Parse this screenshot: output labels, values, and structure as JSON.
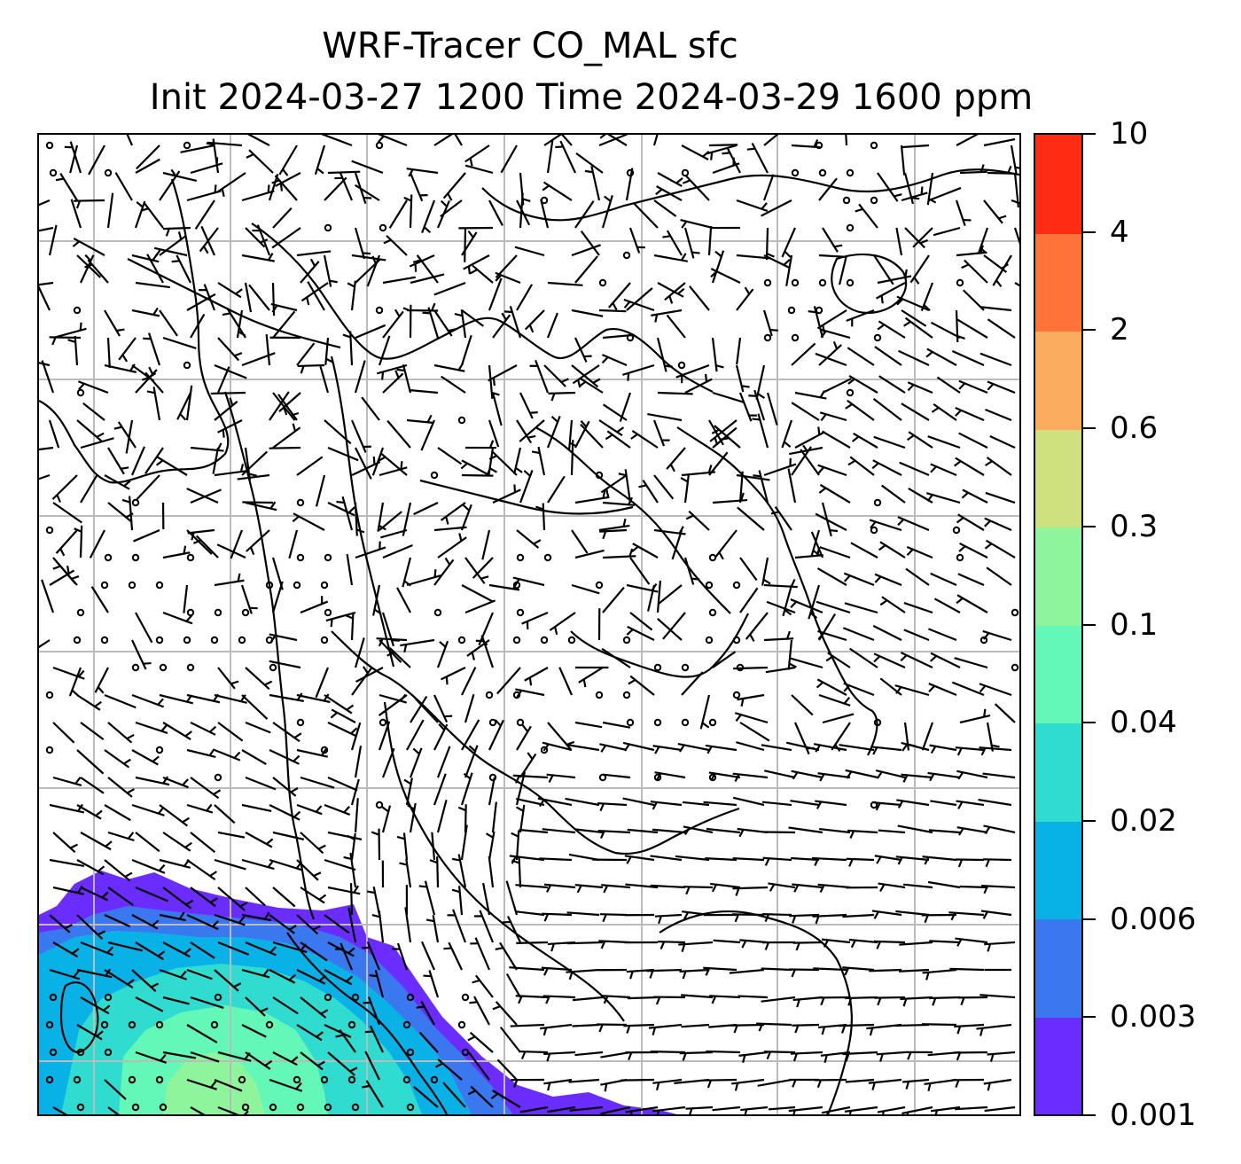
{
  "title": {
    "line1": "WRF-Tracer CO_MAL sfc",
    "line2": "Init 2024-03-27 1200 Time 2024-03-29 1600 ppm"
  },
  "colorbar": {
    "ticks": [
      "0.001",
      "0.003",
      "0.006",
      "0.02",
      "0.04",
      "0.1",
      "0.3",
      "0.6",
      "2",
      "4",
      "10"
    ],
    "colors": [
      "#6a2cff",
      "#3a78ef",
      "#09b2e6",
      "#2fdccf",
      "#63f7b8",
      "#8ff59c",
      "#cfe07f",
      "#fbac5e",
      "#ff7338",
      "#ff2b12"
    ]
  },
  "map": {
    "background": "#ffffff",
    "gridline_color": "#bbbbbb",
    "coastline_color": "#000000",
    "wind_barb_color": "#000000",
    "calm_marker": "circle",
    "plume_location": "bottom-left"
  }
}
